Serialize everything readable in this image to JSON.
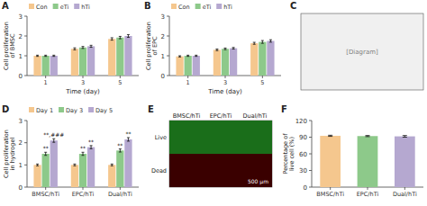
{
  "chart_data": [
    {
      "type": "bar",
      "title": "A",
      "xlabel": "Time (day)",
      "ylabel": "Cell proliferation\nof BMSC",
      "categories": [
        1,
        3,
        5
      ],
      "series": [
        {
          "name": "Con",
          "color": "#F5C78E",
          "values": [
            1.0,
            1.35,
            1.85
          ],
          "errors": [
            0.03,
            0.05,
            0.06
          ]
        },
        {
          "name": "eTi",
          "color": "#8DC98A",
          "values": [
            1.0,
            1.42,
            1.92
          ],
          "errors": [
            0.03,
            0.05,
            0.06
          ]
        },
        {
          "name": "hTi",
          "color": "#B5A8D0",
          "values": [
            1.0,
            1.48,
            2.0
          ],
          "errors": [
            0.03,
            0.05,
            0.07
          ]
        }
      ],
      "ylim": [
        0,
        3
      ],
      "yticks": [
        0,
        1,
        2,
        3
      ],
      "legend": "top",
      "grid": false
    },
    {
      "type": "bar",
      "title": "B",
      "xlabel": "Time (day)",
      "ylabel": "Cell proliferation\nof EPC",
      "categories": [
        1,
        3,
        5
      ],
      "series": [
        {
          "name": "Con",
          "color": "#F5C78E",
          "values": [
            0.97,
            1.3,
            1.63
          ],
          "errors": [
            0.03,
            0.04,
            0.05
          ]
        },
        {
          "name": "eTi",
          "color": "#8DC98A",
          "values": [
            1.0,
            1.35,
            1.7
          ],
          "errors": [
            0.03,
            0.04,
            0.07
          ]
        },
        {
          "name": "hTi",
          "color": "#B5A8D0",
          "values": [
            1.0,
            1.38,
            1.75
          ],
          "errors": [
            0.03,
            0.04,
            0.06
          ]
        }
      ],
      "ylim": [
        0,
        3
      ],
      "yticks": [
        0,
        1,
        2,
        3
      ],
      "legend": "top",
      "grid": false
    },
    {
      "type": "image",
      "title": "C",
      "color": "#f0f0f0",
      "annotations": [
        "[Diagram]"
      ]
    },
    {
      "type": "bar",
      "title": "D",
      "ylabel": "Cell proliferation\nin hydrogel",
      "categories": [
        "BMSC/hTi",
        "EPC/hTi",
        "Dual/hTi"
      ],
      "series": [
        {
          "name": "Day 1",
          "color": "#F5C78E",
          "values": [
            1.0,
            1.0,
            1.0
          ],
          "errors": [
            0.04,
            0.04,
            0.04
          ]
        },
        {
          "name": "Day 3",
          "color": "#8DC98A",
          "values": [
            1.5,
            1.5,
            1.65
          ],
          "errors": [
            0.07,
            0.07,
            0.07
          ],
          "annotations": [
            "**",
            "**",
            "**"
          ]
        },
        {
          "name": "Day 5",
          "color": "#B5A8D0",
          "values": [
            2.1,
            1.8,
            2.15
          ],
          "errors": [
            0.08,
            0.07,
            0.08
          ],
          "annotations": [
            "**,###",
            "**",
            "**"
          ]
        }
      ],
      "ylim": [
        0,
        3
      ],
      "yticks": [
        0,
        1,
        2,
        3
      ],
      "legend": "top",
      "grid": false
    },
    {
      "type": "image",
      "title": "E",
      "categories": [
        "BMSC/hTi",
        "EPC/hTi",
        "Dual/hTi"
      ],
      "rows": [
        {
          "name": "Live",
          "color": "#1a6e1a"
        },
        {
          "name": "Dead",
          "color": "#3a0000"
        }
      ],
      "annotations": [
        {
          "text": "500 μm",
          "color": "white"
        }
      ]
    },
    {
      "type": "bar",
      "title": "F",
      "ylabel": "Percentage of\nlive cell (%)",
      "categories": [
        "BMSC/hTi",
        "EPC/hTi",
        "Dual/hTi"
      ],
      "values": [
        92.5,
        92.0,
        91.5
      ],
      "errors": [
        1.0,
        1.0,
        1.5
      ],
      "colors": [
        "#F5C78E",
        "#8DC98A",
        "#B5A8D0"
      ],
      "ylim": [
        0,
        120
      ],
      "yticks": [
        0,
        30,
        60,
        90,
        120
      ],
      "grid": false
    }
  ]
}
